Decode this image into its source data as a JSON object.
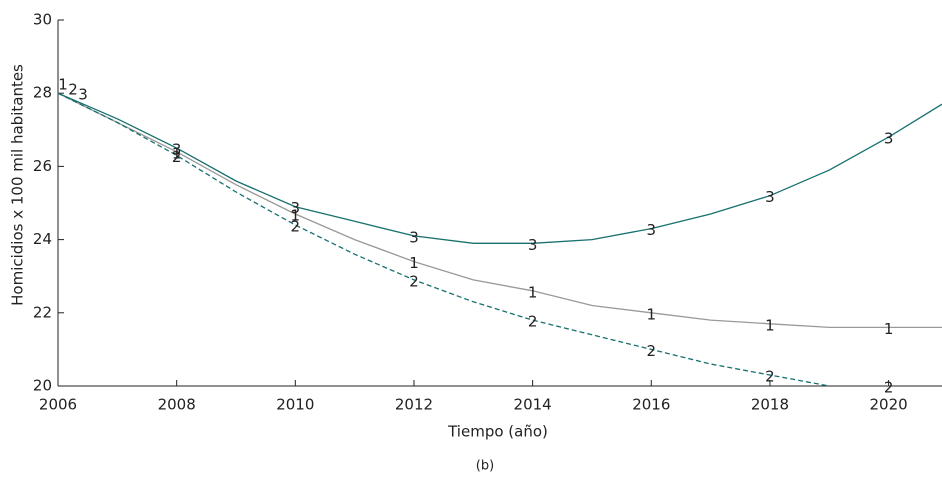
{
  "chart_data": {
    "type": "line",
    "x_label": "Tiempo (año)",
    "y_label": "Homicidios x 100 mil habitantes",
    "caption": "(b)",
    "x": [
      2006,
      2007,
      2008,
      2009,
      2010,
      2011,
      2012,
      2013,
      2014,
      2015,
      2016,
      2017,
      2018,
      2019,
      2020,
      2020.9
    ],
    "series": [
      {
        "name": "1",
        "color": "#999999",
        "linestyle": "solid",
        "values": [
          28.0,
          27.2,
          26.4,
          25.5,
          24.7,
          24.0,
          23.4,
          22.9,
          22.6,
          22.2,
          22.0,
          21.8,
          21.7,
          21.6,
          21.6,
          21.6
        ]
      },
      {
        "name": "2",
        "color": "#17706e",
        "linestyle": "dashed",
        "values": [
          28.0,
          27.2,
          26.3,
          25.3,
          24.4,
          23.6,
          22.9,
          22.3,
          21.8,
          21.4,
          21.0,
          20.6,
          20.3,
          20.0,
          null,
          null
        ]
      },
      {
        "name": "3",
        "color": "#17706e",
        "linestyle": "solid",
        "values": [
          28.0,
          27.3,
          26.5,
          25.6,
          24.9,
          24.5,
          24.1,
          23.9,
          23.9,
          24.0,
          24.3,
          24.7,
          25.2,
          25.9,
          26.8,
          27.7
        ]
      }
    ],
    "xlim": [
      2006,
      2020.9
    ],
    "ylim": [
      20,
      30
    ],
    "xticks": [
      2006,
      2008,
      2010,
      2012,
      2014,
      2016,
      2018,
      2020
    ],
    "yticks": [
      20,
      22,
      24,
      26,
      28,
      30
    ],
    "grid": false
  }
}
